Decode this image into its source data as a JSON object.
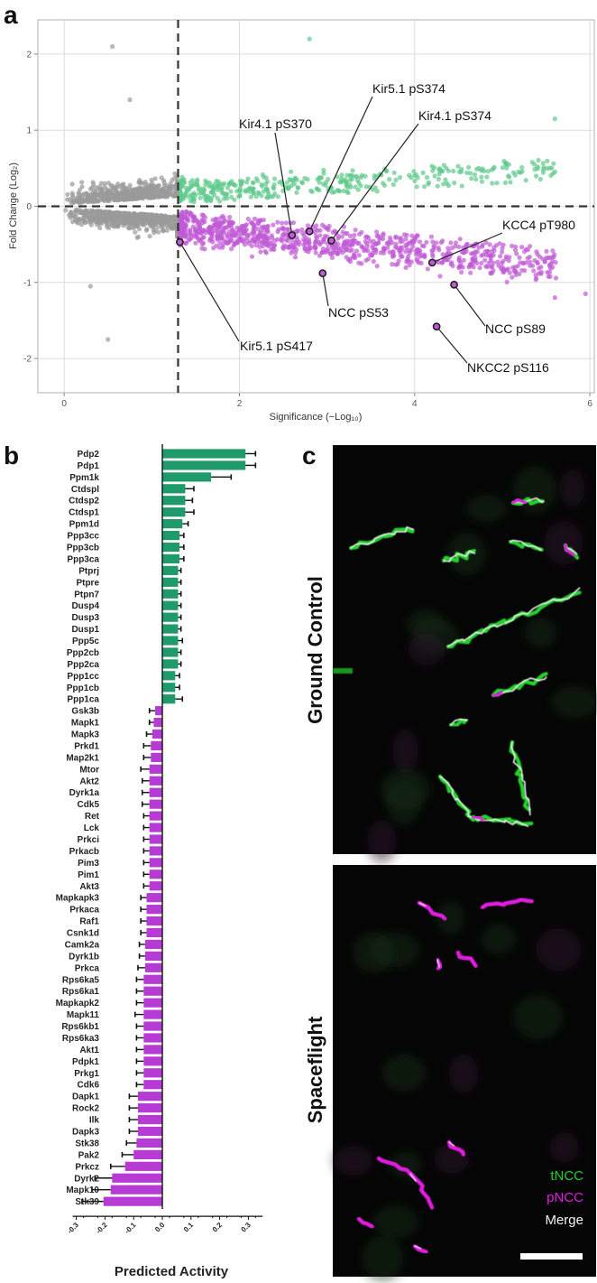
{
  "panels": {
    "a": "a",
    "b": "b",
    "c": "c"
  },
  "chart_data": [
    {
      "type": "scatter",
      "panel": "a",
      "xlabel": "Significance (−Log₁₀)",
      "ylabel": "Fold Change (Log₂)",
      "xlim": [
        -0.3,
        6.05
      ],
      "ylim": [
        -2.45,
        2.45
      ],
      "xticks": [
        0,
        2,
        4,
        6
      ],
      "yticks": [
        -2,
        -1,
        0,
        1,
        2
      ],
      "grid": true,
      "thresholds": {
        "x": 1.3,
        "y": 0
      },
      "colors": {
        "up": "#5ec98a",
        "down": "#c15ad6",
        "ns": "#9a9a9a"
      },
      "highlights": [
        {
          "label": "Kir4.1 pS370",
          "x": 2.6,
          "y": -0.38
        },
        {
          "label": "Kir5.1 pS374",
          "x": 2.8,
          "y": -0.33
        },
        {
          "label": "Kir4.1 pS374",
          "x": 3.05,
          "y": -0.45
        },
        {
          "label": "KCC4 pT980",
          "x": 4.2,
          "y": -0.74
        },
        {
          "label": "NCC pS53",
          "x": 2.95,
          "y": -0.88
        },
        {
          "label": "NCC pS89",
          "x": 4.45,
          "y": -1.03
        },
        {
          "label": "Kir5.1 pS417",
          "x": 1.32,
          "y": -0.47
        },
        {
          "label": "NKCC2 pS116",
          "x": 4.25,
          "y": -1.58
        }
      ]
    },
    {
      "type": "bar",
      "panel": "b",
      "orientation": "horizontal",
      "xlabel": "Predicted Activity",
      "xlim": [
        -0.3,
        0.35
      ],
      "xticks": [
        -0.3,
        -0.2,
        -0.1,
        0.0,
        0.1,
        0.2,
        0.3
      ],
      "xtick_labels": [
        "-0.3",
        "-0.2",
        "-0.1",
        "0.0",
        "0.1",
        "0.2",
        "0.3"
      ],
      "colors": {
        "positive": "#1e9a6b",
        "negative": "#b73ad4"
      },
      "categories": [
        "Pdp2",
        "Pdp1",
        "Ppm1k",
        "Ctdspl",
        "Ctdsp2",
        "Ctdsp1",
        "Ppm1d",
        "Ppp3cc",
        "Ppp3cb",
        "Ppp3ca",
        "Ptprj",
        "Ptpre",
        "Ptpn7",
        "Dusp4",
        "Dusp3",
        "Dusp1",
        "Ppp5c",
        "Ppp2cb",
        "Ppp2ca",
        "Ppp1cc",
        "Ppp1cb",
        "Ppp1ca",
        "Gsk3b",
        "Mapk1",
        "Mapk3",
        "Prkd1",
        "Map2k1",
        "Mtor",
        "Akt2",
        "Dyrk1a",
        "Cdk5",
        "Ret",
        "Lck",
        "Prkci",
        "Prkacb",
        "Pim3",
        "Pim1",
        "Akt3",
        "Mapkapk3",
        "Prkaca",
        "Raf1",
        "Csnk1d",
        "Camk2a",
        "Dyrk1b",
        "Prkca",
        "Rps6ka5",
        "Rps6ka1",
        "Mapkapk2",
        "Mapk11",
        "Rps6kb1",
        "Rps6ka3",
        "Akt1",
        "Pdpk1",
        "Prkg1",
        "Cdk6",
        "Dapk1",
        "Rock2",
        "Ilk",
        "Dapk3",
        "Stk38",
        "Pak2",
        "Prkcz",
        "Dyrk2",
        "Mapk10",
        "Stk39"
      ],
      "values": [
        0.29,
        0.29,
        0.17,
        0.08,
        0.08,
        0.08,
        0.07,
        0.06,
        0.06,
        0.06,
        0.055,
        0.055,
        0.055,
        0.055,
        0.055,
        0.055,
        0.055,
        0.055,
        0.055,
        0.045,
        0.045,
        0.045,
        -0.025,
        -0.03,
        -0.035,
        -0.04,
        -0.04,
        -0.045,
        -0.045,
        -0.045,
        -0.045,
        -0.045,
        -0.045,
        -0.045,
        -0.045,
        -0.045,
        -0.045,
        -0.045,
        -0.055,
        -0.055,
        -0.055,
        -0.055,
        -0.06,
        -0.06,
        -0.06,
        -0.065,
        -0.065,
        -0.065,
        -0.065,
        -0.065,
        -0.065,
        -0.065,
        -0.065,
        -0.065,
        -0.065,
        -0.085,
        -0.085,
        -0.085,
        -0.085,
        -0.09,
        -0.1,
        -0.13,
        -0.175,
        -0.18,
        -0.205
      ],
      "errors": [
        0.035,
        0.035,
        0.07,
        0.03,
        0.025,
        0.03,
        0.02,
        0.015,
        0.015,
        0.015,
        0.01,
        0.01,
        0.01,
        0.01,
        0.01,
        0.01,
        0.015,
        0.01,
        0.01,
        0.015,
        0.015,
        0.025,
        0.02,
        0.015,
        0.02,
        0.025,
        0.025,
        0.03,
        0.025,
        0.025,
        0.025,
        0.02,
        0.02,
        0.02,
        0.02,
        0.02,
        0.02,
        0.02,
        0.02,
        0.02,
        0.02,
        0.02,
        0.02,
        0.02,
        0.025,
        0.025,
        0.025,
        0.025,
        0.03,
        0.025,
        0.025,
        0.025,
        0.025,
        0.025,
        0.025,
        0.03,
        0.03,
        0.03,
        0.03,
        0.035,
        0.04,
        0.05,
        0.06,
        0.065,
        0.075
      ]
    }
  ],
  "panel_c": {
    "top_label": "Ground Control",
    "bottom_label": "Spaceflight",
    "legend": [
      {
        "label": "tNCC",
        "color": "#22d12a"
      },
      {
        "label": "pNCC",
        "color": "#e21ee0"
      },
      {
        "label": "Merge",
        "color": "#f2f2f2"
      }
    ],
    "scale_bar": "scale-bar"
  }
}
